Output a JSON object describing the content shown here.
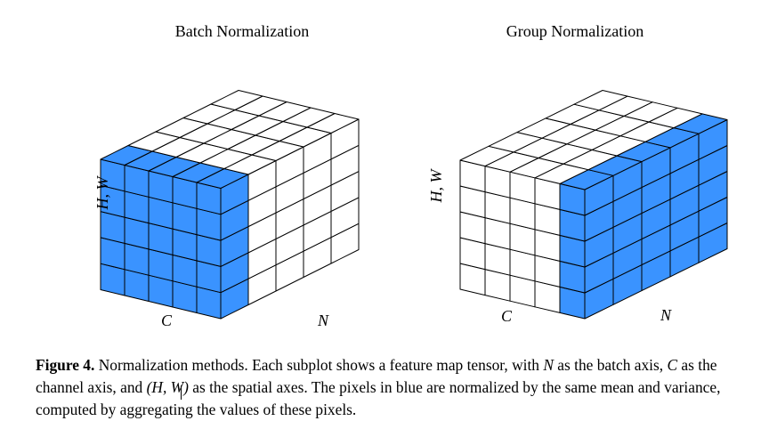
{
  "panels": [
    {
      "title": "Batch Normalization",
      "labels": {
        "hw": "H, W",
        "c": "C",
        "n": "N"
      },
      "highlight": "batch"
    },
    {
      "title": "Group Normalization",
      "labels": {
        "hw": "H, W",
        "c": "C",
        "n": "N"
      },
      "highlight": "group"
    }
  ],
  "colors": {
    "highlight": "#3a93ff",
    "stroke": "#000000",
    "face": "#ffffff"
  },
  "caption": {
    "label": "Figure 4.",
    "t1": " Normalization methods. Each subplot shows a feature map tensor, with ",
    "n": "N",
    "t2": " as the batch axis, ",
    "c": "C",
    "t3": " as the channel axis, and ",
    "hw": "(H, W)",
    "t4": " as the spatial axes. The pixels in blue are normalized by the same mean and variance, computed by aggregating the values of these pixels."
  }
}
